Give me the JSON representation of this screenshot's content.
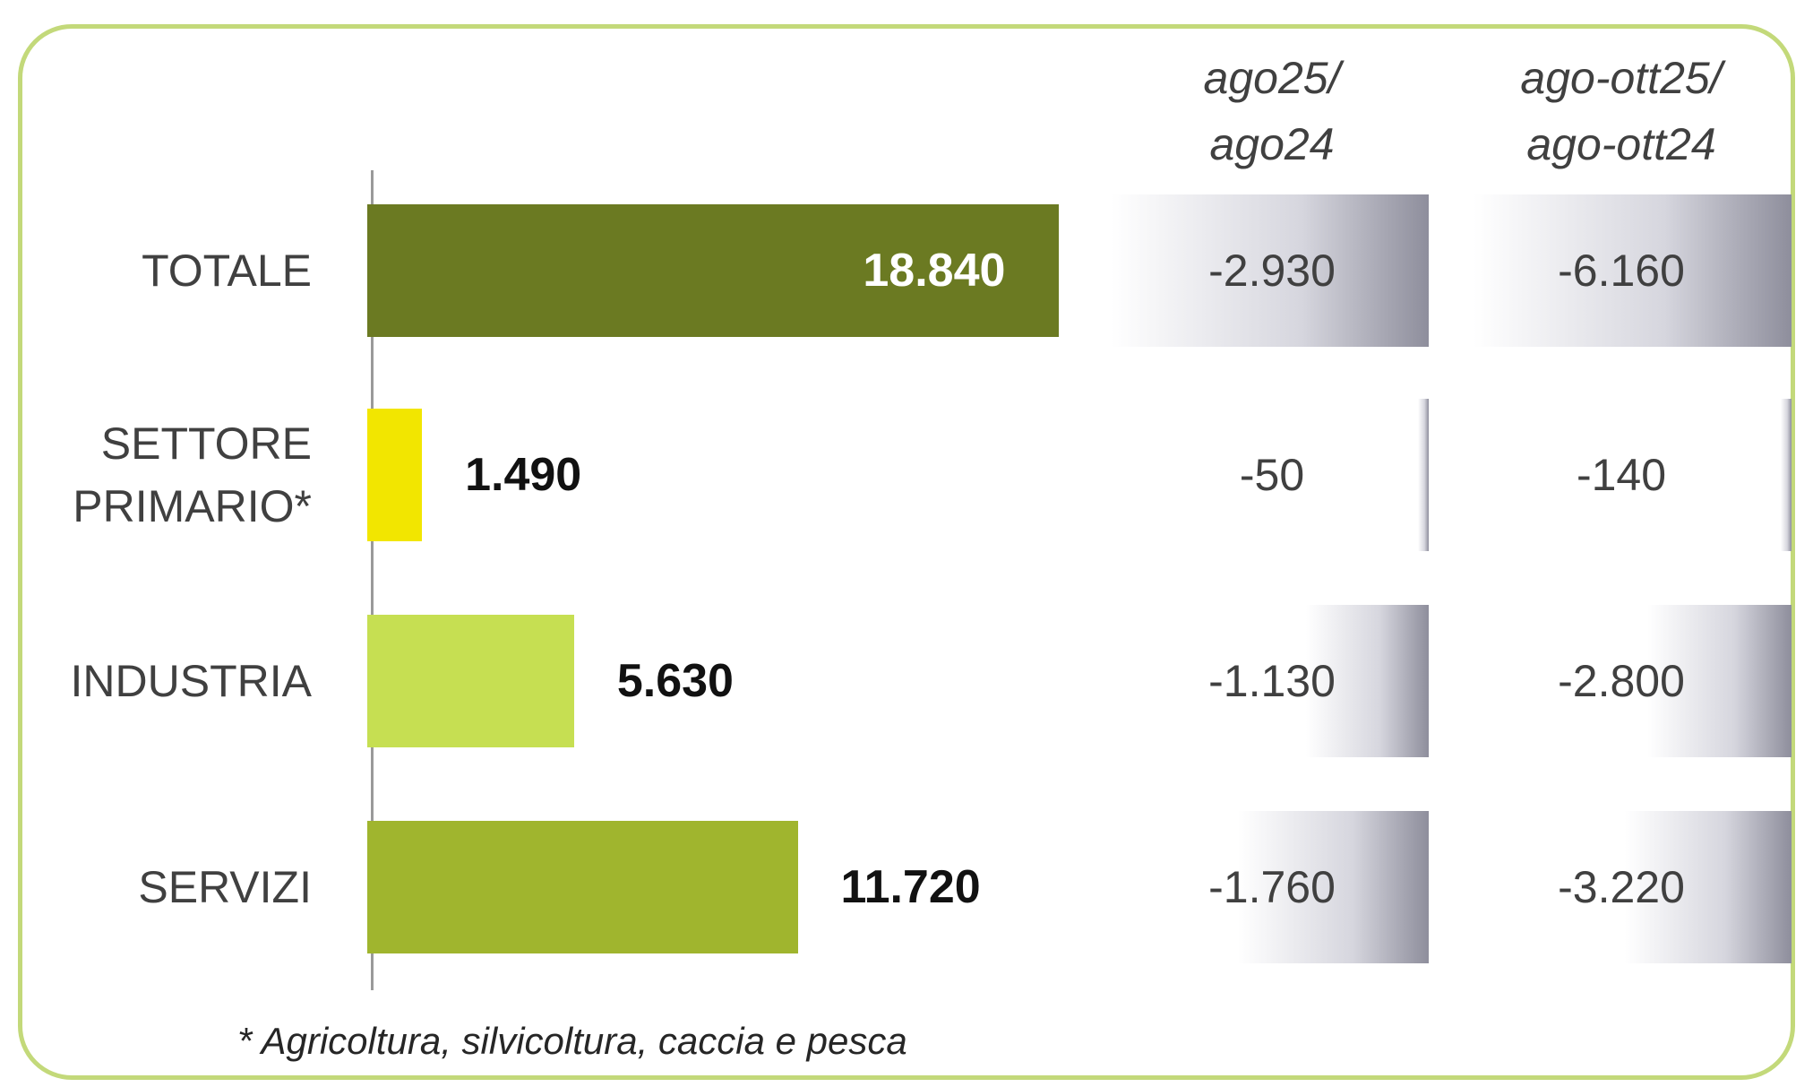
{
  "chart_data": {
    "type": "bar",
    "orientation": "horizontal",
    "categories": [
      "TOTALE",
      "SETTORE PRIMARIO*",
      "INDUSTRIA",
      "SERVIZI"
    ],
    "values": [
      18840,
      1490,
      5630,
      11720
    ],
    "value_labels": [
      "18.840",
      "1.490",
      "5.630",
      "11.720"
    ],
    "colors": [
      "#6b7a22",
      "#f2e600",
      "#c6df52",
      "#a0b52e"
    ],
    "xlim": [
      0,
      35000
    ],
    "table_columns": [
      {
        "header_line1": "ago25/",
        "header_line2": "ago24",
        "values": [
          -2930,
          -50,
          -1130,
          -1760
        ],
        "labels": [
          "-2.930",
          "-50",
          "-1.130",
          "-1.760"
        ]
      },
      {
        "header_line1": "ago-ott25/",
        "header_line2": "ago-ott24",
        "values": [
          -6160,
          -140,
          -2800,
          -3220
        ],
        "labels": [
          "-6.160",
          "-140",
          "-2.800",
          "-3.220"
        ]
      }
    ],
    "footnote": "* Agricoltura, silvicoltura, caccia e pesca"
  }
}
